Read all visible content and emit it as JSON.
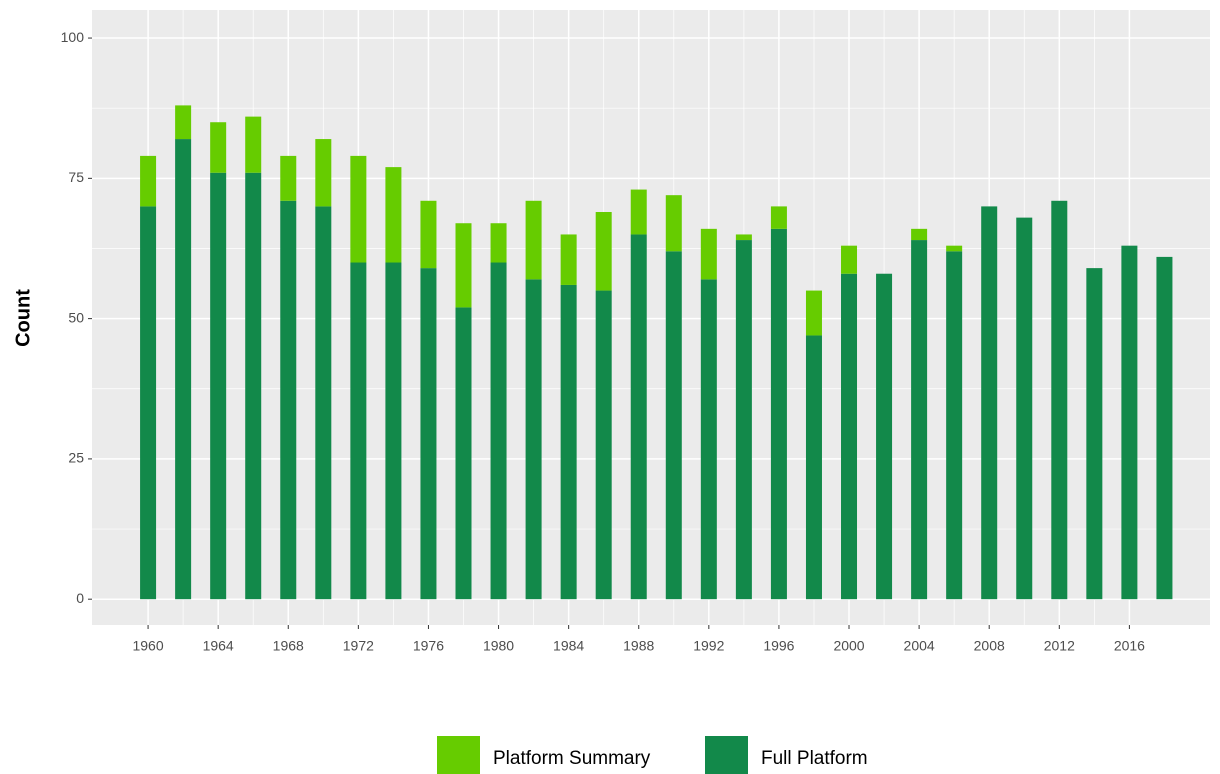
{
  "chart_data": {
    "type": "bar",
    "stacked": true,
    "y_label": "Count",
    "x": [
      1960,
      1962,
      1964,
      1966,
      1968,
      1970,
      1972,
      1974,
      1976,
      1978,
      1980,
      1982,
      1984,
      1986,
      1988,
      1990,
      1992,
      1994,
      1996,
      1998,
      2000,
      2002,
      2004,
      2006,
      2008,
      2010,
      2012,
      2014,
      2016,
      2018
    ],
    "series": [
      {
        "name": "Platform Summary",
        "color": "#66cc00",
        "values": [
          9,
          6,
          9,
          10,
          8,
          12,
          19,
          17,
          12,
          15,
          7,
          14,
          9,
          14,
          8,
          10,
          9,
          1,
          4,
          8,
          5,
          0,
          2,
          1,
          0,
          0,
          0,
          0,
          0,
          0
        ]
      },
      {
        "name": "Full Platform",
        "color": "#12894a",
        "values": [
          70,
          82,
          76,
          76,
          71,
          70,
          60,
          60,
          59,
          52,
          60,
          57,
          56,
          55,
          65,
          62,
          57,
          64,
          66,
          47,
          58,
          58,
          64,
          62,
          70,
          68,
          71,
          59,
          63,
          61
        ]
      }
    ],
    "xlim": [
      1956.8,
      2020.6
    ],
    "xticks": [
      1960,
      1964,
      1968,
      1972,
      1976,
      1980,
      1984,
      1988,
      1992,
      1996,
      2000,
      2004,
      2008,
      2012,
      2016
    ],
    "ylim": [
      -4.6,
      105
    ],
    "yticks": [
      0,
      25,
      50,
      75,
      100
    ],
    "grid": true,
    "legend": "bottom"
  }
}
